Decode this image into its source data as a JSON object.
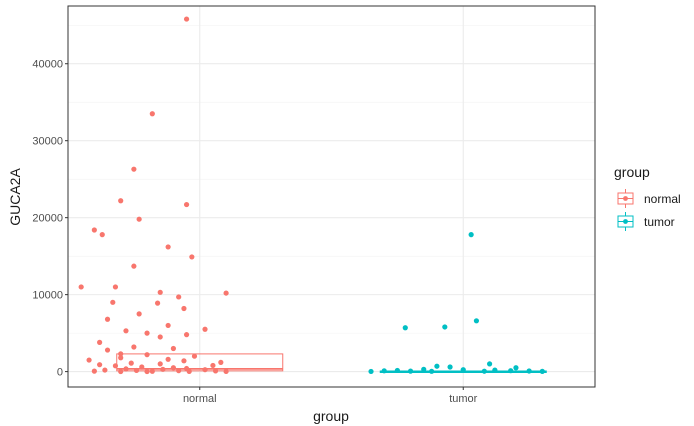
{
  "chart_data": {
    "type": "boxplot",
    "title": "",
    "xlabel": "group",
    "ylabel": "GUCA2A",
    "categories": [
      "normal",
      "tumor"
    ],
    "ylim": [
      -2000,
      47500
    ],
    "yticks": [
      0,
      10000,
      20000,
      30000,
      40000
    ],
    "ytick_labels": [
      "0",
      "10000",
      "20000",
      "30000",
      "40000"
    ],
    "grid": true,
    "legend": {
      "title": "group",
      "position": "right",
      "entries": [
        "normal",
        "tumor"
      ]
    },
    "colors": {
      "normal": "#F8766D",
      "tumor": "#00BFC4"
    },
    "series": [
      {
        "name": "normal",
        "box": {
          "q1": 100,
          "median": 350,
          "q3": 2300
        },
        "points": [
          [
            -0.05,
            45800
          ],
          [
            -0.18,
            33500
          ],
          [
            -0.25,
            26300
          ],
          [
            -0.3,
            22200
          ],
          [
            -0.05,
            21700
          ],
          [
            -0.23,
            19800
          ],
          [
            -0.4,
            18400
          ],
          [
            -0.37,
            17800
          ],
          [
            -0.12,
            16200
          ],
          [
            -0.03,
            14900
          ],
          [
            -0.25,
            13700
          ],
          [
            -0.45,
            11000
          ],
          [
            -0.32,
            11000
          ],
          [
            -0.15,
            10300
          ],
          [
            -0.08,
            9700
          ],
          [
            0.1,
            10200
          ],
          [
            -0.33,
            9000
          ],
          [
            -0.16,
            8900
          ],
          [
            -0.06,
            8200
          ],
          [
            -0.23,
            7500
          ],
          [
            -0.35,
            6800
          ],
          [
            -0.12,
            6000
          ],
          [
            0.02,
            5500
          ],
          [
            -0.28,
            5300
          ],
          [
            -0.2,
            5000
          ],
          [
            -0.05,
            4800
          ],
          [
            -0.15,
            4500
          ],
          [
            -0.38,
            3800
          ],
          [
            -0.25,
            3200
          ],
          [
            -0.1,
            3000
          ],
          [
            -0.35,
            2800
          ],
          [
            -0.3,
            2300
          ],
          [
            -0.2,
            2200
          ],
          [
            -0.02,
            2000
          ],
          [
            -0.3,
            1800
          ],
          [
            -0.12,
            1600
          ],
          [
            -0.42,
            1500
          ],
          [
            -0.06,
            1400
          ],
          [
            0.08,
            1200
          ],
          [
            -0.26,
            1100
          ],
          [
            -0.15,
            1000
          ],
          [
            -0.38,
            900
          ],
          [
            0.05,
            800
          ],
          [
            -0.32,
            750
          ],
          [
            -0.22,
            600
          ],
          [
            -0.1,
            500
          ],
          [
            -0.05,
            400
          ],
          [
            -0.28,
            350
          ],
          [
            -0.14,
            300
          ],
          [
            0.02,
            250
          ],
          [
            -0.36,
            200
          ],
          [
            -0.24,
            150
          ],
          [
            -0.08,
            120
          ],
          [
            0.06,
            90
          ],
          [
            -0.4,
            60
          ],
          [
            -0.18,
            40
          ],
          [
            -0.04,
            30
          ],
          [
            0.1,
            20
          ],
          [
            -0.3,
            10
          ],
          [
            -0.2,
            5
          ]
        ]
      },
      {
        "name": "tumor",
        "box": {
          "q1": 0,
          "median": 20,
          "q3": 80
        },
        "points": [
          [
            0.03,
            17800
          ],
          [
            0.05,
            6600
          ],
          [
            -0.07,
            5800
          ],
          [
            -0.22,
            5700
          ],
          [
            0.1,
            1000
          ],
          [
            -0.1,
            700
          ],
          [
            -0.05,
            600
          ],
          [
            0.2,
            500
          ],
          [
            -0.15,
            300
          ],
          [
            0.0,
            250
          ],
          [
            0.12,
            200
          ],
          [
            -0.25,
            150
          ],
          [
            0.18,
            120
          ],
          [
            -0.3,
            100
          ],
          [
            0.25,
            80
          ],
          [
            -0.2,
            60
          ],
          [
            0.08,
            50
          ],
          [
            -0.12,
            40
          ],
          [
            0.3,
            30
          ],
          [
            -0.35,
            20
          ]
        ]
      }
    ]
  }
}
